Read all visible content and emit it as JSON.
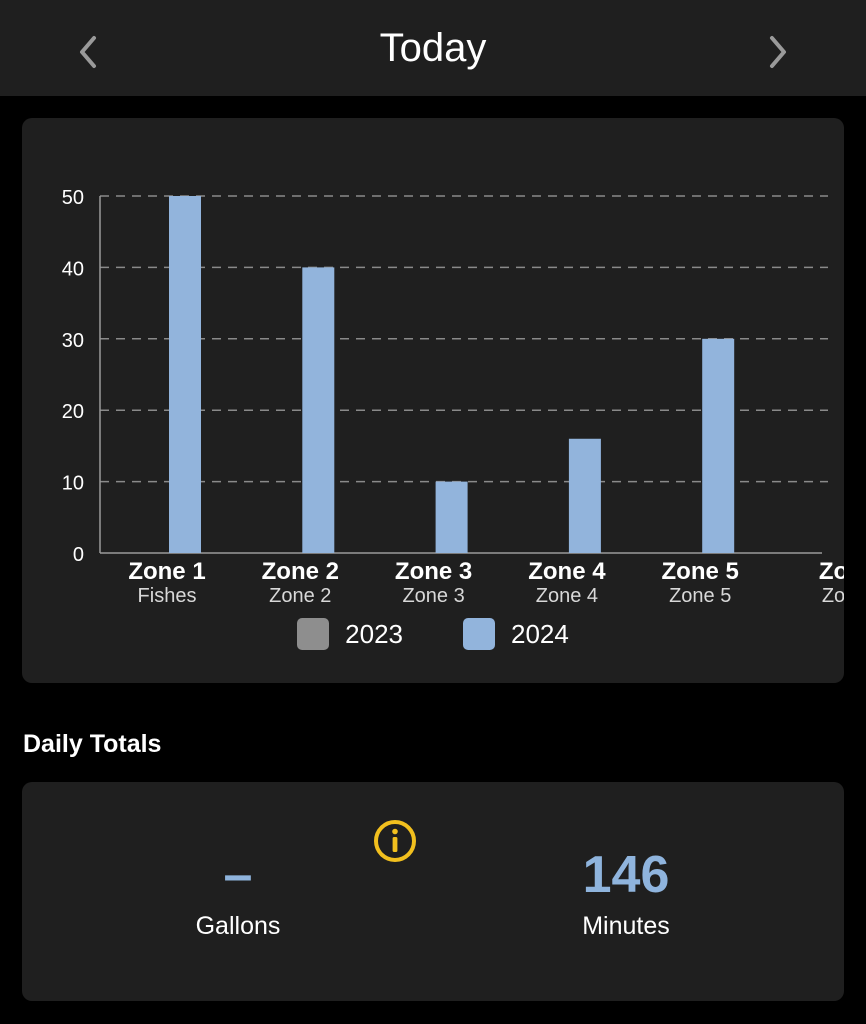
{
  "header": {
    "title": "Today"
  },
  "colors": {
    "background": "#000000",
    "card": "#1f1f1f",
    "series_2023": "#8e8e8e",
    "series_2024": "#92b4dc",
    "accent_info": "#f2c01e"
  },
  "chart_data": {
    "type": "bar",
    "categories": [
      {
        "label": "Zone 1",
        "sublabel": "Fishes"
      },
      {
        "label": "Zone 2",
        "sublabel": "Zone 2"
      },
      {
        "label": "Zone 3",
        "sublabel": "Zone 3"
      },
      {
        "label": "Zone 4",
        "sublabel": "Zone 4"
      },
      {
        "label": "Zone 5",
        "sublabel": "Zone 5"
      },
      {
        "label": "Zo",
        "sublabel": "Zo"
      }
    ],
    "series": [
      {
        "name": "2023",
        "color": "#8e8e8e",
        "values": [
          0,
          0,
          0,
          0,
          0,
          null
        ]
      },
      {
        "name": "2024",
        "color": "#92b4dc",
        "values": [
          50,
          40,
          10,
          16,
          30,
          null
        ]
      }
    ],
    "ylim": [
      0,
      50
    ],
    "yticks": [
      "0",
      "10",
      "20",
      "30",
      "40",
      "50"
    ],
    "grid": true,
    "legend": "bottom"
  },
  "totals": {
    "section_title": "Daily Totals",
    "gallons_value": "–",
    "gallons_label": "Gallons",
    "minutes_value": "146",
    "minutes_label": "Minutes",
    "info_icon": "info-circle-icon"
  }
}
